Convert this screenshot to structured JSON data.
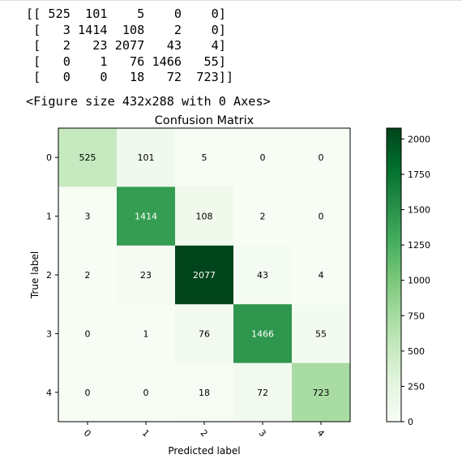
{
  "output": {
    "matrix_print": [
      "[[ 525  101    5    0    0]",
      " [   3 1414  108    2    0]",
      " [   2   23 2077   43    4]",
      " [   0    1   76 1466   55]",
      " [   0    0   18   72  723]]"
    ],
    "figure_note": "<Figure size 432x288 with 0 Axes>"
  },
  "chart_data": {
    "type": "heatmap",
    "title": "Confusion Matrix",
    "xlabel": "Predicted label",
    "ylabel": "True label",
    "x_ticks": [
      "0",
      "1",
      "2",
      "3",
      "4"
    ],
    "y_ticks": [
      "0",
      "1",
      "2",
      "3",
      "4"
    ],
    "values": [
      [
        525,
        101,
        5,
        0,
        0
      ],
      [
        3,
        1414,
        108,
        2,
        0
      ],
      [
        2,
        23,
        2077,
        43,
        4
      ],
      [
        0,
        1,
        76,
        1466,
        55
      ],
      [
        0,
        0,
        18,
        72,
        723
      ]
    ],
    "colormap": "Greens",
    "colorbar": {
      "range": [
        0,
        2077
      ],
      "ticks": [
        0,
        250,
        500,
        750,
        1000,
        1250,
        1500,
        1750,
        2000
      ],
      "tick_labels": [
        "0",
        "250",
        "500",
        "750",
        "1000",
        "1250",
        "1500",
        "1750",
        "2000"
      ]
    }
  }
}
